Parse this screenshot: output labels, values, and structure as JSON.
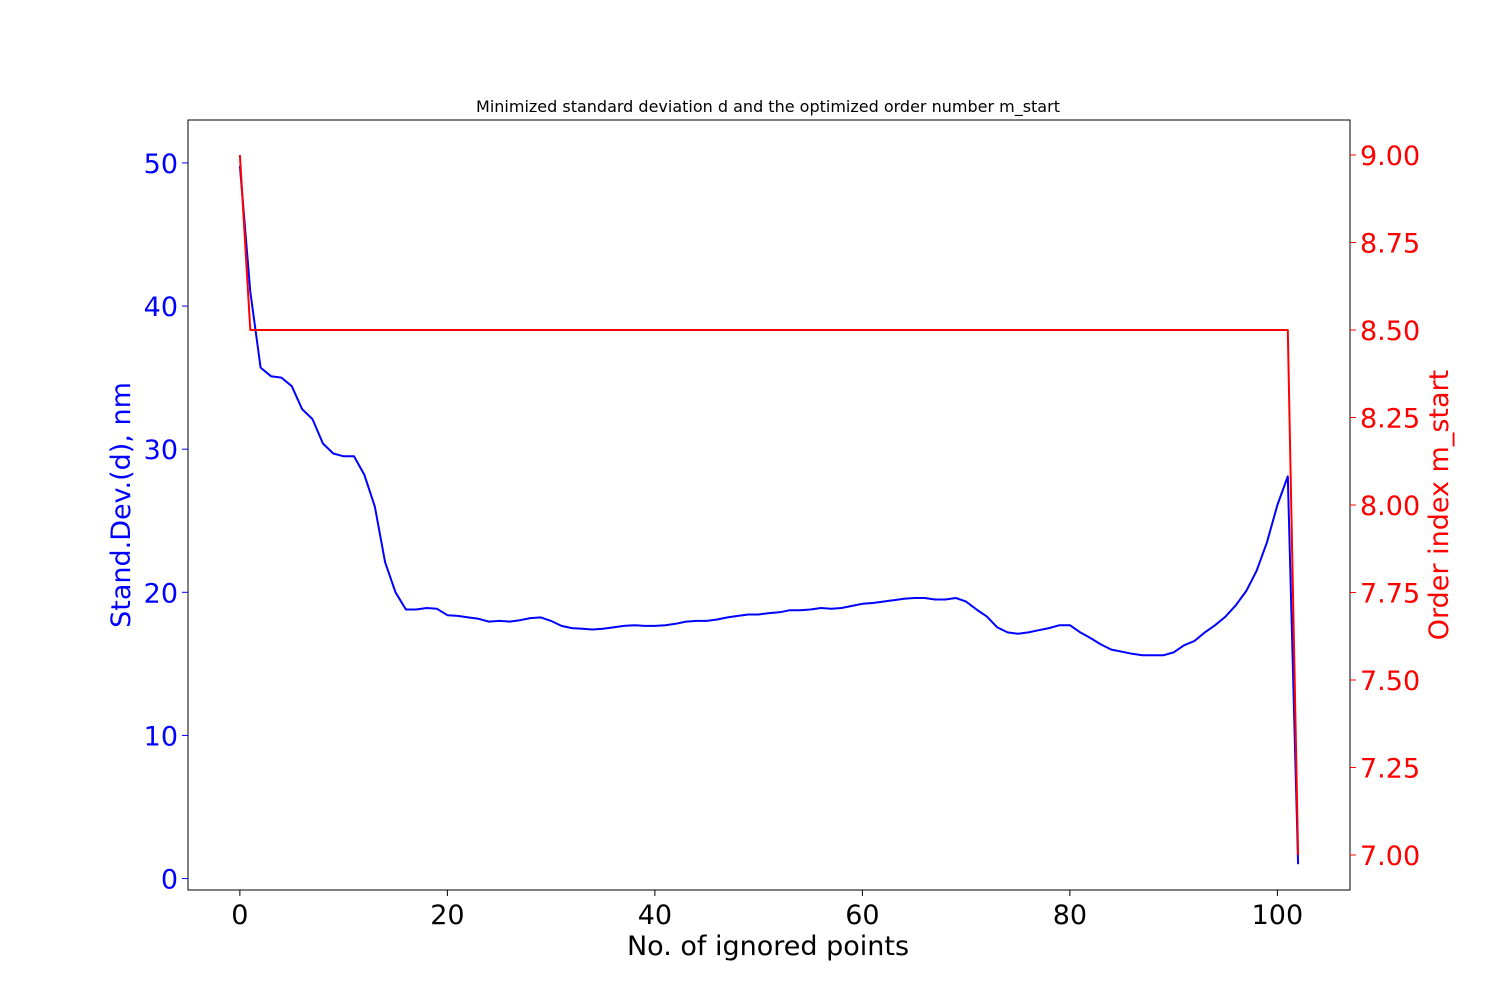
{
  "chart_data": {
    "type": "line",
    "title": "Minimized standard deviation d and the optimized order number m_start",
    "xlabel": "No. of ignored points",
    "ylabel_left": "Stand.Dev.(d), nm",
    "ylabel_right": "Order index m_start",
    "xlim": [
      -5,
      107
    ],
    "ylim_left": [
      -0.8,
      53
    ],
    "ylim_right": [
      6.9,
      9.1
    ],
    "x_ticks": [
      0,
      20,
      40,
      60,
      80,
      100
    ],
    "y_ticks_left": [
      0,
      10,
      20,
      30,
      40,
      50
    ],
    "y_ticks_right": [
      "7.00",
      "7.25",
      "7.50",
      "7.75",
      "8.00",
      "8.25",
      "8.50",
      "8.75",
      "9.00"
    ],
    "grid": false,
    "colors": {
      "left": "#0000ff",
      "right": "#ff0000",
      "axes": "#000000"
    },
    "series": [
      {
        "axis": "left",
        "color": "#0000ff",
        "x": [
          0,
          1,
          2,
          3,
          4,
          5,
          6,
          7,
          8,
          9,
          10,
          11,
          12,
          13,
          14,
          15,
          16,
          17,
          18,
          19,
          20,
          21,
          22,
          23,
          24,
          25,
          26,
          27,
          28,
          29,
          30,
          31,
          32,
          33,
          34,
          35,
          36,
          37,
          38,
          39,
          40,
          41,
          42,
          43,
          44,
          45,
          46,
          47,
          48,
          49,
          50,
          51,
          52,
          53,
          54,
          55,
          56,
          57,
          58,
          59,
          60,
          61,
          62,
          63,
          64,
          65,
          66,
          67,
          68,
          69,
          70,
          71,
          72,
          73,
          74,
          75,
          76,
          77,
          78,
          79,
          80,
          81,
          82,
          83,
          84,
          85,
          86,
          87,
          88,
          89,
          90,
          91,
          92,
          93,
          94,
          95,
          96,
          97,
          98,
          99,
          100,
          101,
          102
        ],
        "values": [
          49.8,
          41.0,
          35.7,
          35.1,
          35.0,
          34.4,
          32.8,
          32.1,
          30.4,
          29.7,
          29.5,
          29.5,
          28.2,
          26.0,
          22.1,
          20.0,
          18.8,
          18.8,
          18.9,
          18.85,
          18.4,
          18.35,
          18.25,
          18.15,
          17.95,
          18.0,
          17.95,
          18.05,
          18.2,
          18.25,
          18.0,
          17.65,
          17.5,
          17.45,
          17.4,
          17.45,
          17.55,
          17.65,
          17.7,
          17.65,
          17.65,
          17.7,
          17.8,
          17.95,
          18.0,
          18.0,
          18.1,
          18.25,
          18.35,
          18.45,
          18.45,
          18.55,
          18.6,
          18.75,
          18.75,
          18.8,
          18.9,
          18.85,
          18.9,
          19.05,
          19.2,
          19.25,
          19.35,
          19.45,
          19.55,
          19.6,
          19.6,
          19.5,
          19.5,
          19.6,
          19.35,
          18.8,
          18.3,
          17.55,
          17.2,
          17.1,
          17.2,
          17.35,
          17.5,
          17.7,
          17.7,
          17.2,
          16.8,
          16.35,
          16.0,
          15.85,
          15.7,
          15.6,
          15.6,
          15.6,
          15.8,
          16.3,
          16.6,
          17.2,
          17.7,
          18.3,
          19.1,
          20.1,
          21.5,
          23.5,
          26.1,
          28.1,
          1.0
        ]
      },
      {
        "axis": "right",
        "color": "#ff0000",
        "x": [
          0,
          1,
          101,
          102
        ],
        "values": [
          9.0,
          8.5,
          8.5,
          7.0
        ]
      }
    ]
  }
}
